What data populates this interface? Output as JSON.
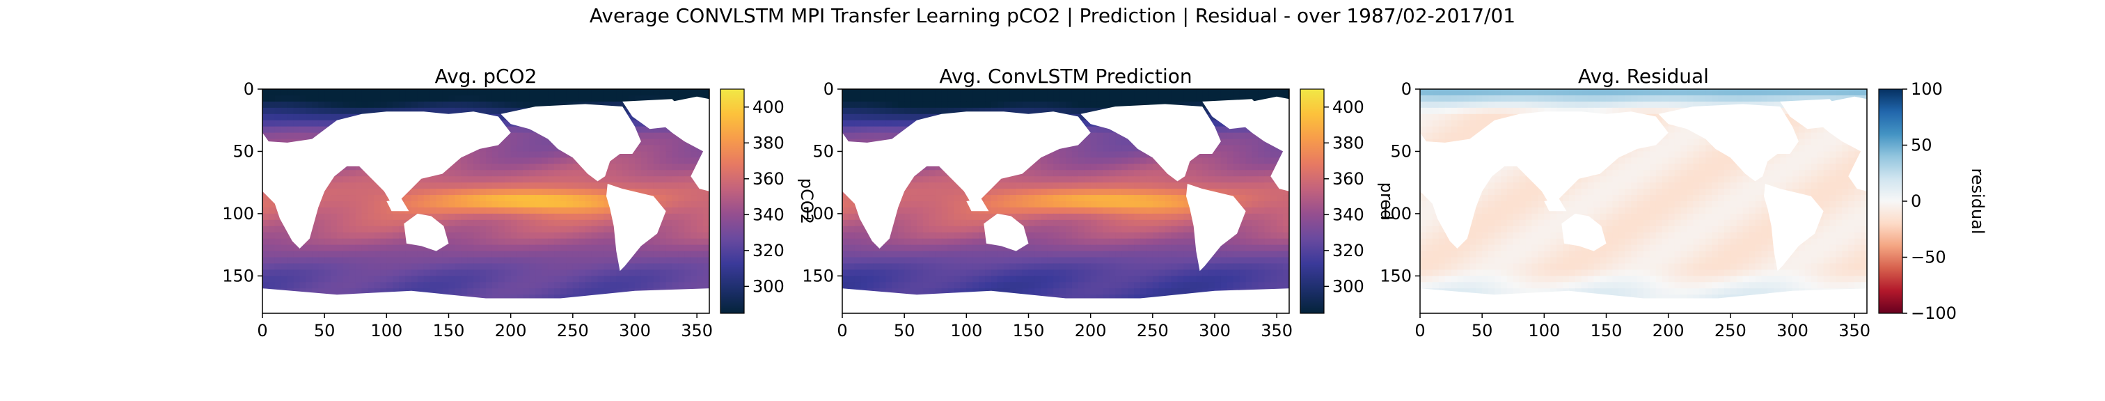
{
  "figure": {
    "suptitle": "Average CONVLSTM MPI Transfer Learning pCO2 | Prediction | Residual - over 1987/02-2017/01"
  },
  "chart_data": [
    {
      "type": "heatmap",
      "title": "Avg. pCO2",
      "xlabel": "",
      "ylabel": "",
      "x_ticks": [
        0,
        50,
        100,
        150,
        200,
        250,
        300,
        350
      ],
      "y_ticks": [
        0,
        50,
        100,
        150
      ],
      "xlim": [
        0,
        360
      ],
      "ylim": [
        180,
        0
      ],
      "colorbar": {
        "label": "pCO2",
        "colormap": "thermal",
        "range": [
          285,
          410
        ],
        "ticks": [
          300,
          320,
          340,
          360,
          380,
          400
        ]
      },
      "masked_value_color": "#ffffff",
      "field_description_values": {
        "equatorial_pacific_max": 400,
        "subtropics_typical": 360,
        "southern_ocean_typical": 330,
        "high_latitude_north_min": 290
      }
    },
    {
      "type": "heatmap",
      "title": "Avg. ConvLSTM Prediction",
      "xlabel": "",
      "ylabel": "",
      "x_ticks": [
        0,
        50,
        100,
        150,
        200,
        250,
        300,
        350
      ],
      "y_ticks": [
        0,
        50,
        100,
        150
      ],
      "xlim": [
        0,
        360
      ],
      "ylim": [
        180,
        0
      ],
      "colorbar": {
        "label": "pred",
        "colormap": "thermal",
        "range": [
          285,
          410
        ],
        "ticks": [
          300,
          320,
          340,
          360,
          380,
          400
        ]
      },
      "masked_value_color": "#ffffff",
      "field_description_values": {
        "equatorial_pacific_max": 395,
        "subtropics_typical": 360,
        "southern_ocean_typical": 325,
        "high_latitude_north_min": 290
      }
    },
    {
      "type": "heatmap",
      "title": "Avg. Residual",
      "xlabel": "",
      "ylabel": "",
      "x_ticks": [
        0,
        50,
        100,
        150,
        200,
        250,
        300,
        350
      ],
      "y_ticks": [
        0,
        50,
        100,
        150
      ],
      "xlim": [
        0,
        360
      ],
      "ylim": [
        180,
        0
      ],
      "colorbar": {
        "label": "residual",
        "colormap": "RdBu",
        "range": [
          -100,
          100
        ],
        "ticks": [
          100,
          50,
          0,
          -50,
          -100
        ]
      },
      "masked_value_color": "#ffffff",
      "field_description_values": {
        "open_ocean_typical": -10,
        "arctic_edge_typical": 50,
        "southern_ocean_typical": 20
      }
    }
  ],
  "colors": {
    "thermal": [
      "#04233a",
      "#1e2f6d",
      "#3b3a9a",
      "#6a4a9f",
      "#964f8f",
      "#c4637c",
      "#e77a62",
      "#f79c4b",
      "#fcc23b",
      "#f1e846"
    ],
    "rdbu": [
      "#67001f",
      "#b2182b",
      "#d6604d",
      "#f4a582",
      "#fddbc7",
      "#f7f7f7",
      "#d1e5f0",
      "#92c5de",
      "#4393c3",
      "#2166ac",
      "#053061"
    ],
    "axis": "#000000"
  }
}
